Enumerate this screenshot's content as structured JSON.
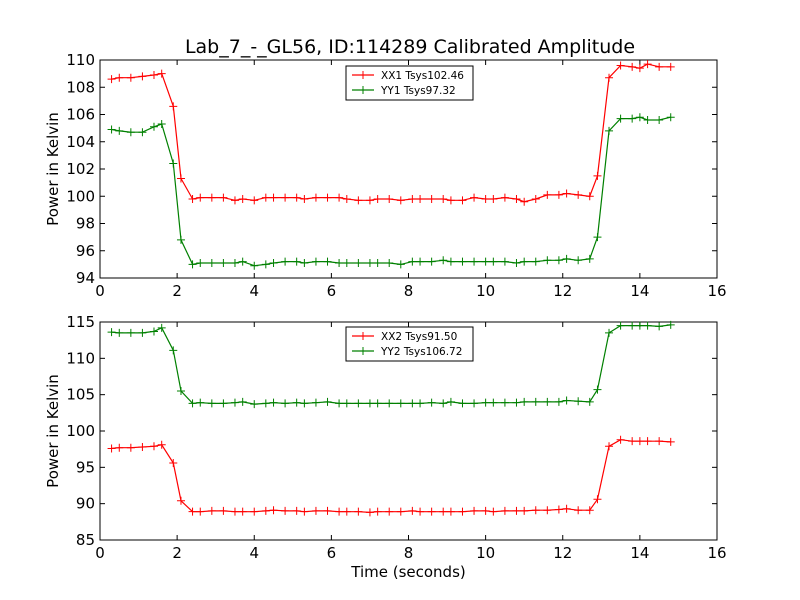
{
  "figure": {
    "title": "Lab_7_-_GL56, ID:114289 Calibrated Amplitude"
  },
  "chart_data": [
    {
      "type": "line",
      "title": "Lab_7_-_GL56, ID:114289 Calibrated Amplitude",
      "xlabel": "",
      "ylabel": "Power in Kelvin",
      "xlim": [
        0,
        16
      ],
      "ylim": [
        94,
        110
      ],
      "xticks": [
        0,
        2,
        4,
        6,
        8,
        10,
        12,
        14,
        16
      ],
      "yticks": [
        94,
        96,
        98,
        100,
        102,
        104,
        106,
        108,
        110
      ],
      "grid": false,
      "legend": "top-center",
      "x": [
        0.3,
        0.5,
        0.8,
        1.1,
        1.4,
        1.6,
        1.9,
        2.1,
        2.4,
        2.6,
        2.9,
        3.2,
        3.5,
        3.7,
        4.0,
        4.3,
        4.5,
        4.8,
        5.1,
        5.3,
        5.6,
        5.9,
        6.2,
        6.4,
        6.7,
        7.0,
        7.2,
        7.5,
        7.8,
        8.1,
        8.3,
        8.6,
        8.9,
        9.1,
        9.4,
        9.7,
        10.0,
        10.2,
        10.5,
        10.8,
        11.0,
        11.3,
        11.6,
        11.9,
        12.1,
        12.4,
        12.7,
        12.9,
        13.2,
        13.5,
        13.8,
        14.0,
        14.2,
        14.5,
        14.8
      ],
      "series": [
        {
          "name": "XX1 Tsys102.46",
          "color": "#ff0000",
          "values": [
            108.6,
            108.7,
            108.7,
            108.8,
            108.9,
            109.0,
            106.6,
            101.3,
            99.8,
            99.9,
            99.9,
            99.9,
            99.7,
            99.8,
            99.7,
            99.9,
            99.9,
            99.9,
            99.9,
            99.8,
            99.9,
            99.9,
            99.9,
            99.8,
            99.7,
            99.7,
            99.8,
            99.8,
            99.7,
            99.8,
            99.8,
            99.8,
            99.8,
            99.7,
            99.7,
            99.9,
            99.8,
            99.8,
            99.9,
            99.8,
            99.6,
            99.8,
            100.1,
            100.1,
            100.2,
            100.1,
            100.0,
            101.5,
            108.7,
            109.6,
            109.5,
            109.4,
            109.7,
            109.5,
            109.5
          ]
        },
        {
          "name": "YY1 Tsys97.32",
          "color": "#008000",
          "values": [
            104.9,
            104.8,
            104.7,
            104.7,
            105.1,
            105.3,
            102.4,
            96.8,
            95.0,
            95.1,
            95.1,
            95.1,
            95.1,
            95.2,
            94.9,
            95.0,
            95.1,
            95.2,
            95.2,
            95.1,
            95.2,
            95.2,
            95.1,
            95.1,
            95.1,
            95.1,
            95.1,
            95.1,
            95.0,
            95.2,
            95.2,
            95.2,
            95.3,
            95.2,
            95.2,
            95.2,
            95.2,
            95.2,
            95.2,
            95.1,
            95.2,
            95.2,
            95.3,
            95.3,
            95.4,
            95.3,
            95.4,
            97.0,
            104.8,
            105.7,
            105.7,
            105.8,
            105.6,
            105.6,
            105.8
          ]
        }
      ]
    },
    {
      "type": "line",
      "title": "",
      "xlabel": "Time (seconds)",
      "ylabel": "Power in Kelvin",
      "xlim": [
        0,
        16
      ],
      "ylim": [
        85,
        115
      ],
      "xticks": [
        0,
        2,
        4,
        6,
        8,
        10,
        12,
        14,
        16
      ],
      "yticks": [
        85,
        90,
        95,
        100,
        105,
        110,
        115
      ],
      "grid": false,
      "legend": "top-center",
      "x": [
        0.3,
        0.5,
        0.8,
        1.1,
        1.4,
        1.6,
        1.9,
        2.1,
        2.4,
        2.6,
        2.9,
        3.2,
        3.5,
        3.7,
        4.0,
        4.3,
        4.5,
        4.8,
        5.1,
        5.3,
        5.6,
        5.9,
        6.2,
        6.4,
        6.7,
        7.0,
        7.2,
        7.5,
        7.8,
        8.1,
        8.3,
        8.6,
        8.9,
        9.1,
        9.4,
        9.7,
        10.0,
        10.2,
        10.5,
        10.8,
        11.0,
        11.3,
        11.6,
        11.9,
        12.1,
        12.4,
        12.7,
        12.9,
        13.2,
        13.5,
        13.8,
        14.0,
        14.2,
        14.5,
        14.8
      ],
      "series": [
        {
          "name": "XX2 Tsys91.50",
          "color": "#ff0000",
          "values": [
            97.6,
            97.7,
            97.7,
            97.8,
            97.9,
            98.1,
            95.6,
            90.4,
            88.9,
            88.9,
            89.0,
            89.0,
            88.9,
            88.9,
            88.9,
            89.0,
            89.1,
            89.0,
            89.0,
            88.9,
            89.0,
            89.0,
            88.9,
            88.9,
            88.9,
            88.8,
            88.9,
            88.9,
            88.9,
            89.0,
            88.9,
            88.9,
            88.9,
            88.9,
            88.9,
            89.0,
            89.0,
            88.9,
            89.0,
            89.0,
            89.0,
            89.1,
            89.1,
            89.2,
            89.3,
            89.1,
            89.1,
            90.6,
            97.9,
            98.8,
            98.6,
            98.6,
            98.6,
            98.6,
            98.5
          ]
        },
        {
          "name": "YY2 Tsys106.72",
          "color": "#008000",
          "values": [
            113.6,
            113.5,
            113.5,
            113.5,
            113.7,
            114.2,
            111.1,
            105.5,
            103.8,
            103.9,
            103.8,
            103.8,
            103.9,
            104.0,
            103.7,
            103.8,
            103.9,
            103.8,
            103.9,
            103.8,
            103.9,
            104.0,
            103.8,
            103.8,
            103.8,
            103.8,
            103.8,
            103.8,
            103.8,
            103.8,
            103.8,
            103.9,
            103.8,
            104.0,
            103.8,
            103.8,
            103.9,
            103.9,
            103.9,
            103.9,
            104.0,
            104.0,
            104.0,
            104.0,
            104.2,
            104.1,
            104.0,
            105.7,
            113.5,
            114.5,
            114.5,
            114.5,
            114.5,
            114.4,
            114.6
          ]
        }
      ]
    }
  ]
}
